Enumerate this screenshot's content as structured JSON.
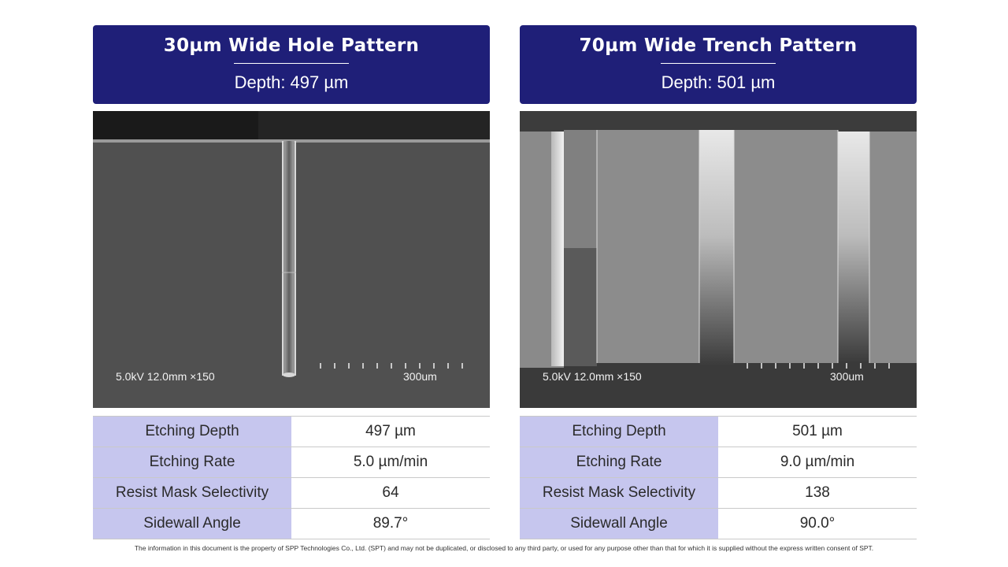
{
  "panels": [
    {
      "title": "30µm Wide Hole Pattern",
      "depth": "Depth: 497 µm",
      "image": {
        "description_icon": "sem-hole-cross-section",
        "overlay_left": "5.0kV 12.0mm ×150",
        "overlay_right": "300um"
      },
      "table": [
        {
          "key": "Etching Depth",
          "value": "497 µm"
        },
        {
          "key": "Etching Rate",
          "value": "5.0 µm/min"
        },
        {
          "key": "Resist Mask Selectivity",
          "value": "64"
        },
        {
          "key": "Sidewall Angle",
          "value": "89.7°"
        }
      ]
    },
    {
      "title": "70µm Wide Trench Pattern",
      "depth": "Depth: 501 µm",
      "image": {
        "description_icon": "sem-trench-cross-section",
        "overlay_left": "5.0kV 12.0mm ×150",
        "overlay_right": "300um"
      },
      "table": [
        {
          "key": "Etching Depth",
          "value": "501 µm"
        },
        {
          "key": "Etching Rate",
          "value": "9.0 µm/min"
        },
        {
          "key": "Resist Mask Selectivity",
          "value": "138"
        },
        {
          "key": "Sidewall Angle",
          "value": "90.0°"
        }
      ]
    }
  ],
  "footer": "The information in this document is the property of SPP Technologies Co., Ltd. (SPT) and may not be duplicated, or disclosed to any third party, or used for any purpose other than that for which it is supplied without the express written consent of SPT.",
  "colors": {
    "header_bg": "#1f1f78",
    "table_key_bg": "#c6c6ee"
  }
}
